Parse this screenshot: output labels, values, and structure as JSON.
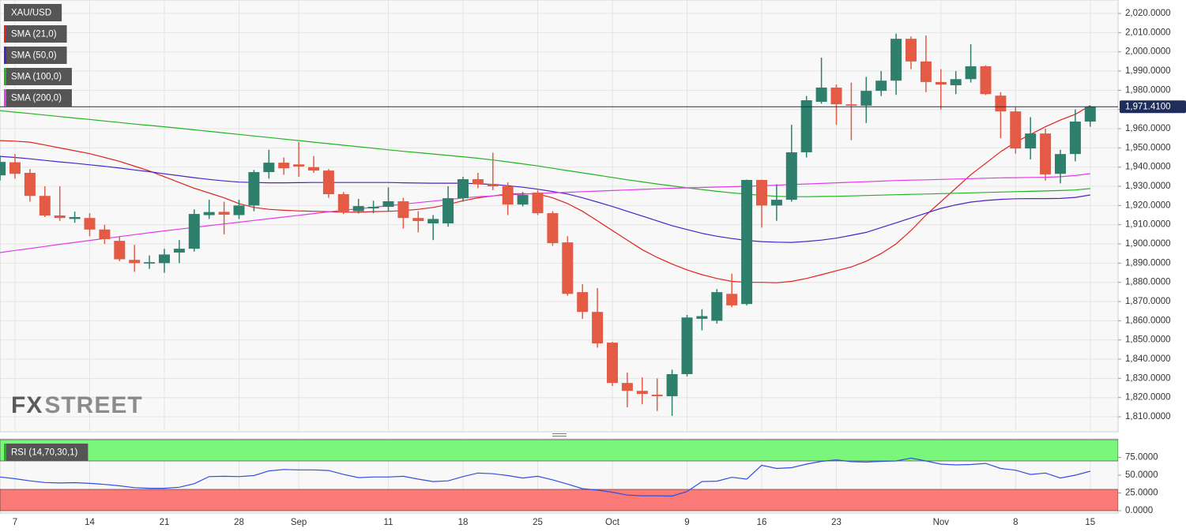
{
  "chart_data": [
    {
      "type": "candlestick",
      "symbol": "XAU/USD",
      "categories": [
        null,
        "7",
        null,
        null,
        null,
        null,
        "14",
        null,
        null,
        null,
        null,
        "21",
        null,
        null,
        null,
        null,
        "28",
        null,
        null,
        null,
        "Sep",
        null,
        null,
        null,
        null,
        null,
        "11",
        null,
        null,
        null,
        null,
        "18",
        null,
        null,
        null,
        null,
        "25",
        null,
        null,
        null,
        null,
        "Oct",
        null,
        null,
        null,
        null,
        "9",
        null,
        null,
        null,
        null,
        "16",
        null,
        null,
        null,
        null,
        "23",
        null,
        null,
        null,
        null,
        null,
        null,
        "Nov",
        null,
        null,
        null,
        null,
        "8",
        null,
        null,
        null,
        null,
        "15"
      ],
      "open": [
        1935.7,
        1942.5,
        1937,
        1925,
        1914.8,
        1913,
        1913.5,
        1907.5,
        1901.6,
        1891.7,
        1889.8,
        1890,
        1895.5,
        1897.5,
        1915,
        1916.7,
        1915,
        1920,
        1937.4,
        1942.3,
        1941.4,
        1940,
        1938.2,
        1925.9,
        1917,
        1918.5,
        1919.3,
        1922.2,
        1913.5,
        1910.7,
        1910.7,
        1923.8,
        1933.7,
        1931.2,
        1930,
        1920.5,
        1926.7,
        1916,
        1900.8,
        1874.9,
        1864.6,
        1848.6,
        1827.6,
        1823.5,
        1821.5,
        1820.7,
        1832.2,
        1861,
        1860,
        1874,
        1868.7,
        1933.3,
        1920,
        1923,
        1947.7,
        1974,
        1981.4,
        1972.7,
        1972,
        1979.7,
        1985,
        2006.8,
        1995,
        1984.3,
        1982.6,
        1985.8,
        1992.5,
        1977.2,
        1969,
        1949.7,
        1957.5,
        1936.5,
        1946.8,
        1963.7
      ],
      "high": [
        1946,
        1946.8,
        1939,
        1930,
        1930,
        1916.8,
        1916,
        1910,
        1904,
        1899.5,
        1894,
        1897.5,
        1902,
        1918,
        1923,
        1922,
        1923,
        1938.5,
        1949,
        1945,
        1953,
        1945.8,
        1939,
        1927,
        1923.5,
        1922.5,
        1929.5,
        1924,
        1917,
        1915,
        1930,
        1935,
        1937,
        1947.5,
        1932,
        1927,
        1928,
        1917,
        1904,
        1879,
        1877,
        1849,
        1833,
        1830.5,
        1830,
        1834.5,
        1863,
        1866,
        1876.5,
        1884.5,
        1933.5,
        1933.5,
        1931,
        1962,
        1977,
        1997,
        1983,
        1984,
        1987,
        1990,
        2009.5,
        2008,
        2008.5,
        1991,
        1990,
        2004,
        1993,
        1979,
        1971,
        1966,
        1960,
        1949,
        1970,
        1972
      ],
      "low": [
        1933,
        1934,
        1922,
        1914,
        1912,
        1911,
        1904,
        1900,
        1891,
        1885.5,
        1887,
        1885,
        1890,
        1896,
        1913,
        1905,
        1913,
        1917,
        1934,
        1936,
        1935,
        1937,
        1924,
        1915.5,
        1915.8,
        1916,
        1917,
        1908,
        1906,
        1902,
        1909,
        1922,
        1929,
        1928,
        1915,
        1919.5,
        1915,
        1899,
        1873,
        1861,
        1846,
        1826,
        1815,
        1816.5,
        1813,
        1810.5,
        1831,
        1855,
        1858.5,
        1867,
        1868,
        1908.5,
        1912,
        1922,
        1945,
        1973,
        1962,
        1954,
        1963,
        1977,
        1977.6,
        1991,
        1979,
        1970,
        1978,
        1984,
        1977.5,
        1955,
        1947,
        1944,
        1933,
        1931.5,
        1943,
        1961
      ],
      "close": [
        1942.7,
        1936.5,
        1925,
        1914.8,
        1913.5,
        1914,
        1907.5,
        1902.5,
        1892,
        1890,
        1890.5,
        1894.5,
        1897.5,
        1915.6,
        1916.6,
        1915.2,
        1920,
        1937.4,
        1942.3,
        1939.4,
        1940.3,
        1938.2,
        1925.9,
        1916.4,
        1919.7,
        1919.3,
        1922.2,
        1913.5,
        1911.9,
        1913,
        1923.8,
        1933.7,
        1931.2,
        1930,
        1920.5,
        1925.5,
        1916,
        1900.4,
        1874,
        1864.6,
        1848.2,
        1827.6,
        1823.5,
        1821.9,
        1820.7,
        1832.2,
        1861.7,
        1862.4,
        1874.9,
        1868,
        1933.3,
        1920,
        1923,
        1947.7,
        1974.8,
        1981.4,
        1972.7,
        1972,
        1979.7,
        1985,
        2006.8,
        1995,
        1984.3,
        1983,
        1985.8,
        1992.5,
        1978,
        1969,
        1949.7,
        1957.5,
        1936.2,
        1946.8,
        1963.7,
        1971.41
      ],
      "up_color": "#2f7f6d",
      "down_color": "#e35b45",
      "series": [
        {
          "name": "SMA (21,0)",
          "color": "#e0231f",
          "values": [
            1953.8,
            1953.5,
            1953,
            1951.5,
            1950,
            1948.5,
            1947,
            1945,
            1943,
            1940.5,
            1938,
            1935,
            1932,
            1929,
            1926.5,
            1924,
            1921,
            1919,
            1918,
            1917.5,
            1917.2,
            1917,
            1916.8,
            1916.5,
            1916.5,
            1916.8,
            1917,
            1917.3,
            1918,
            1919,
            1920.5,
            1922.5,
            1924,
            1925,
            1926,
            1926.2,
            1926,
            1924,
            1921,
            1917,
            1912,
            1907,
            1902,
            1897,
            1893,
            1889.5,
            1886.5,
            1884,
            1882,
            1880.5,
            1880,
            1880,
            1879.8,
            1880.5,
            1882,
            1884,
            1886,
            1888,
            1891,
            1895,
            1900,
            1907,
            1915,
            1922,
            1929,
            1936,
            1942,
            1948,
            1953,
            1957,
            1961,
            1964.5,
            1967.5,
            1972
          ]
        },
        {
          "name": "SMA (50,0)",
          "color": "#4b22c8",
          "values": [
            1945.6,
            1945,
            1944.3,
            1943.5,
            1942.7,
            1942,
            1941.2,
            1940.4,
            1939.5,
            1938.5,
            1937.6,
            1936.5,
            1935.5,
            1934.5,
            1933.6,
            1932.8,
            1932.2,
            1932,
            1931.8,
            1931.8,
            1931.9,
            1932,
            1932,
            1932,
            1932,
            1932,
            1932,
            1931.8,
            1931.7,
            1931.6,
            1931.6,
            1931.6,
            1931.3,
            1931,
            1930.3,
            1929.5,
            1928.5,
            1927.3,
            1926,
            1924,
            1921.8,
            1919.5,
            1917,
            1914.5,
            1912,
            1909.5,
            1907.5,
            1905.5,
            1904,
            1902.8,
            1901.8,
            1901.2,
            1900.9,
            1900.8,
            1901.3,
            1902,
            1903,
            1904.5,
            1906,
            1908.5,
            1911,
            1913.5,
            1916,
            1918.5,
            1920.3,
            1921.8,
            1922.6,
            1923.2,
            1923.5,
            1923.6,
            1923.6,
            1923.7,
            1924.2,
            1925.5
          ]
        },
        {
          "name": "SMA (100,0)",
          "color": "#1fb51f",
          "values": [
            1969.4,
            1968.6,
            1967.9,
            1967.1,
            1966.3,
            1965.5,
            1964.8,
            1964,
            1963.2,
            1962.4,
            1961.7,
            1961,
            1960.2,
            1959.4,
            1958.6,
            1957.8,
            1957,
            1956.2,
            1955.4,
            1954.6,
            1953.8,
            1953,
            1952.2,
            1951.4,
            1950.6,
            1949.8,
            1949,
            1948.2,
            1947.5,
            1946.8,
            1946.1,
            1945.4,
            1944.6,
            1943.7,
            1942.7,
            1941.7,
            1940.6,
            1939.4,
            1938.2,
            1937,
            1935.8,
            1934.6,
            1933.4,
            1932.3,
            1931.2,
            1930.2,
            1929.2,
            1928.3,
            1927.4,
            1926.6,
            1925.9,
            1925.3,
            1924.8,
            1924.6,
            1924.6,
            1924.7,
            1924.8,
            1925,
            1925.2,
            1925.4,
            1925.6,
            1925.8,
            1926,
            1926.2,
            1926.4,
            1926.6,
            1926.8,
            1927,
            1927.2,
            1927.4,
            1927.6,
            1927.8,
            1928.1,
            1928.8
          ]
        },
        {
          "name": "SMA (200,0)",
          "color": "#e23ce8",
          "values": [
            1895.5,
            1896.6,
            1897.6,
            1898.7,
            1899.8,
            1900.8,
            1901.8,
            1902.8,
            1903.8,
            1904.8,
            1905.8,
            1906.8,
            1907.7,
            1908.6,
            1909.5,
            1910.4,
            1911.3,
            1912.2,
            1913.1,
            1914,
            1914.9,
            1915.8,
            1916.7,
            1917.5,
            1918.3,
            1919.1,
            1919.9,
            1920.7,
            1921.5,
            1922.3,
            1923.1,
            1923.9,
            1924.6,
            1925,
            1925.5,
            1925.9,
            1926.3,
            1926.6,
            1926.9,
            1927.2,
            1927.5,
            1927.8,
            1928.1,
            1928.4,
            1928.7,
            1929,
            1929.2,
            1929.4,
            1929.6,
            1929.8,
            1930,
            1930.3,
            1930.6,
            1930.9,
            1931.2,
            1931.5,
            1931.8,
            1932.1,
            1932.4,
            1932.7,
            1933,
            1933.2,
            1933.4,
            1933.6,
            1933.8,
            1934,
            1934.2,
            1934.4,
            1934.5,
            1934.6,
            1934.7,
            1935,
            1935.6,
            1936.6
          ]
        }
      ],
      "ylim": [
        1802.2,
        2027.0
      ],
      "yticks": [
        {
          "value": 2020,
          "label": "2,020.0000"
        },
        {
          "value": 2010,
          "label": "2,010.0000"
        },
        {
          "value": 2000,
          "label": "2,000.0000"
        },
        {
          "value": 1990,
          "label": "1,990.0000"
        },
        {
          "value": 1980,
          "label": "1,980.0000"
        },
        {
          "value": 1970,
          "label": "1,970.0000"
        },
        {
          "value": 1960,
          "label": "1,960.0000"
        },
        {
          "value": 1950,
          "label": "1,950.0000"
        },
        {
          "value": 1940,
          "label": "1,940.0000"
        },
        {
          "value": 1930,
          "label": "1,930.0000"
        },
        {
          "value": 1920,
          "label": "1,920.0000"
        },
        {
          "value": 1910,
          "label": "1,910.0000"
        },
        {
          "value": 1900,
          "label": "1,900.0000"
        },
        {
          "value": 1890,
          "label": "1,890.0000"
        },
        {
          "value": 1880,
          "label": "1,880.0000"
        },
        {
          "value": 1870,
          "label": "1,870.0000"
        },
        {
          "value": 1860,
          "label": "1,860.0000"
        },
        {
          "value": 1850,
          "label": "1,850.0000"
        },
        {
          "value": 1840,
          "label": "1,840.0000"
        },
        {
          "value": 1830,
          "label": "1,830.0000"
        },
        {
          "value": 1820,
          "label": "1,820.0000"
        },
        {
          "value": 1810,
          "label": "1,810.0000"
        }
      ],
      "last_price": {
        "value": 1971.41,
        "label": "1,971.4100"
      },
      "grid": true,
      "watermark": [
        "FX",
        "STREET"
      ]
    },
    {
      "type": "line",
      "series": [
        {
          "name": "RSI (14,70,30,1)",
          "color": "#2f4fe0",
          "values": [
            47.4,
            45,
            42,
            39.7,
            39,
            39.5,
            38.5,
            37,
            35,
            32.5,
            31.5,
            31.5,
            33,
            38,
            48,
            48.5,
            48,
            49.5,
            56,
            58,
            57.5,
            57.5,
            56.5,
            51,
            46.5,
            47.5,
            47.5,
            48.5,
            44.5,
            41,
            42,
            48,
            53,
            52,
            49.5,
            46,
            48.5,
            43.5,
            37.5,
            31,
            29,
            26,
            22,
            21,
            21,
            20.5,
            27,
            41,
            41.5,
            47,
            44.5,
            64,
            59.5,
            60.5,
            65.5,
            69.5,
            71.5,
            69,
            68.5,
            69.5,
            70,
            74,
            70,
            65.5,
            64.5,
            65,
            66.5,
            59.5,
            57,
            51,
            53,
            46,
            50,
            55.5
          ]
        }
      ],
      "ylim": [
        0,
        100
      ],
      "yticks": [
        {
          "value": 75,
          "label": "75.0000"
        },
        {
          "value": 50,
          "label": "50.0000"
        },
        {
          "value": 25,
          "label": "25.0000"
        },
        {
          "value": 0,
          "label": "0.0000"
        }
      ],
      "overbought": 70,
      "oversold": 30,
      "overbought_color": "#7af77a",
      "oversold_color": "#f97a77"
    }
  ]
}
